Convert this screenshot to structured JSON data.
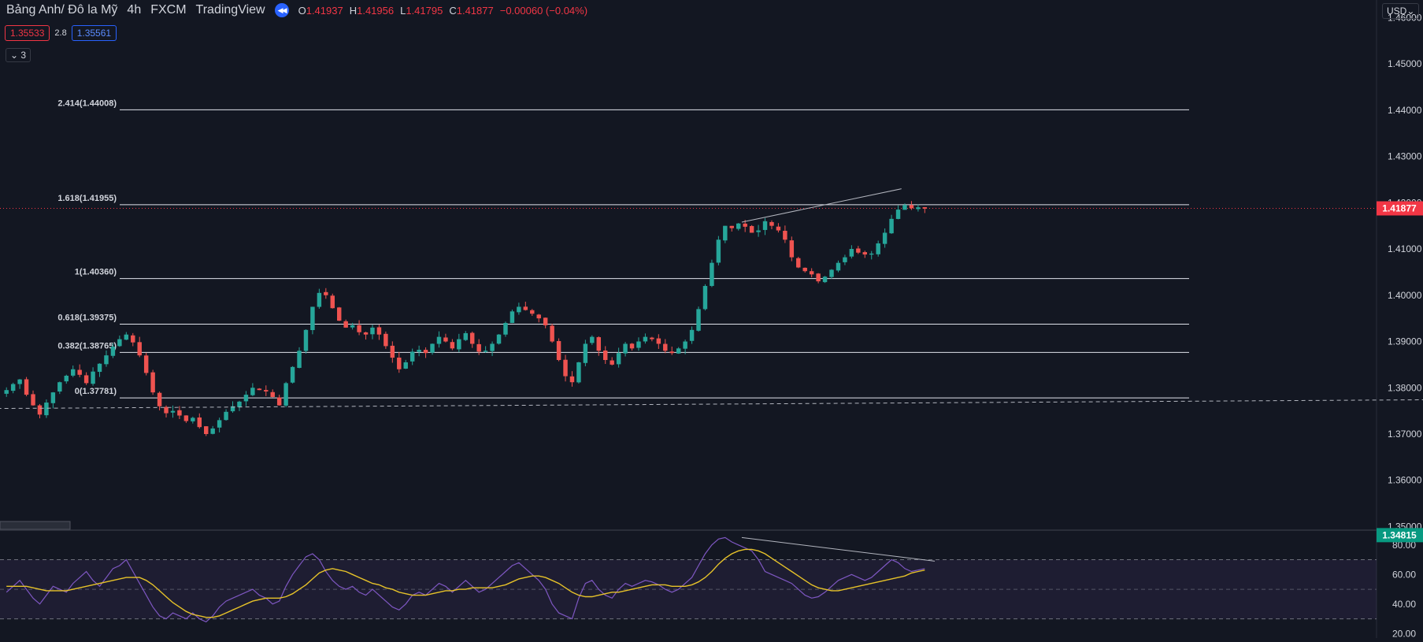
{
  "header": {
    "symbol": "Bảng Anh/ Đô la Mỹ",
    "interval": "4h",
    "exchange": "FXCM",
    "source": "TradingView",
    "ohlc": {
      "o_label": "O",
      "o": "1.41937",
      "h_label": "H",
      "h": "1.41956",
      "l_label": "L",
      "l": "1.41795",
      "c_label": "C",
      "c": "1.41877",
      "change": "−0.00060 (−0.04%)"
    }
  },
  "trade": {
    "sell": "1.35533",
    "spread": "2.8",
    "buy": "1.35561"
  },
  "indicators_collapse": {
    "icon": "chevron-down-icon",
    "count": "3"
  },
  "currency_button": "USD",
  "colors": {
    "background": "#131722",
    "up": "#26a69a",
    "down": "#ef5350",
    "rsi_line": "#7e57c2",
    "rsi_ma": "#e6c229",
    "current_price": "#f23645",
    "bid_tag": "#089981"
  },
  "chart_data": {
    "type": "candlestick",
    "price_axis": {
      "ticks": [
        "1.46000",
        "1.45000",
        "1.44000",
        "1.43000",
        "1.42000",
        "1.41000",
        "1.40000",
        "1.39000",
        "1.38000",
        "1.37000",
        "1.36000",
        "1.35000"
      ],
      "ylim": [
        1.3494,
        1.4638
      ]
    },
    "current_price": {
      "label": "1.41877",
      "value": 1.41877
    },
    "bid_price": {
      "label": "1.34815",
      "value": 1.34815
    },
    "fibonacci": [
      {
        "label": "2.414(1.44008)",
        "value": 1.44008
      },
      {
        "label": "1.618(1.41955)",
        "value": 1.41955
      },
      {
        "label": "1(1.40360)",
        "value": 1.4036
      },
      {
        "label": "0.618(1.39375)",
        "value": 1.39375
      },
      {
        "label": "0.382(1.38765)",
        "value": 1.38765
      },
      {
        "label": "0(1.37781)",
        "value": 1.37781
      }
    ],
    "closes": [
      1.3795,
      1.3808,
      1.3818,
      1.3785,
      1.3762,
      1.3742,
      1.3768,
      1.379,
      1.3812,
      1.3826,
      1.384,
      1.3828,
      1.381,
      1.3835,
      1.3852,
      1.387,
      1.3889,
      1.3905,
      1.3915,
      1.3898,
      1.387,
      1.3832,
      1.379,
      1.376,
      1.3745,
      1.375,
      1.374,
      1.3728,
      1.3735,
      1.3715,
      1.37,
      1.3712,
      1.373,
      1.3748,
      1.376,
      1.377,
      1.3785,
      1.38,
      1.3795,
      1.3792,
      1.378,
      1.3762,
      1.381,
      1.3845,
      1.388,
      1.3925,
      1.3975,
      1.4005,
      1.4,
      1.3972,
      1.3945,
      1.393,
      1.3935,
      1.392,
      1.3915,
      1.393,
      1.3915,
      1.389,
      1.3865,
      1.384,
      1.3855,
      1.3878,
      1.3882,
      1.3875,
      1.3895,
      1.391,
      1.39,
      1.3885,
      1.3905,
      1.3918,
      1.3895,
      1.3878,
      1.388,
      1.3895,
      1.3915,
      1.394,
      1.3965,
      1.3975,
      1.3968,
      1.396,
      1.395,
      1.3935,
      1.39,
      1.386,
      1.3825,
      1.3812,
      1.3855,
      1.3895,
      1.391,
      1.388,
      1.386,
      1.385,
      1.3875,
      1.3895,
      1.3885,
      1.39,
      1.391,
      1.3905,
      1.3895,
      1.388,
      1.3875,
      1.3885,
      1.39,
      1.3925,
      1.397,
      1.402,
      1.407,
      1.412,
      1.415,
      1.4145,
      1.4155,
      1.4148,
      1.4135,
      1.414,
      1.416,
      1.415,
      1.414,
      1.412,
      1.4082,
      1.406,
      1.4052,
      1.4045,
      1.403,
      1.404,
      1.4055,
      1.407,
      1.4082,
      1.41,
      1.4092,
      1.4088,
      1.409,
      1.4112,
      1.4135,
      1.4165,
      1.4185,
      1.4195,
      1.4188,
      1.419,
      1.4187
    ],
    "trendlines": [
      {
        "name": "upper-trendline",
        "from": [
          111,
          1.4158
        ],
        "to": [
          135,
          1.423
        ]
      },
      {
        "name": "dashed-trendline",
        "from": [
          -3,
          1.3755
        ],
        "to": [
          270,
          1.3779
        ]
      }
    ],
    "rsi": {
      "axis_ticks": [
        "80.00",
        "60.00",
        "40.00",
        "20.00"
      ],
      "ylim": [
        17,
        90
      ],
      "band": [
        70,
        30
      ],
      "mid": 50,
      "values": [
        48,
        52,
        56,
        50,
        44,
        40,
        46,
        52,
        50,
        48,
        54,
        58,
        62,
        56,
        52,
        58,
        64,
        66,
        70,
        62,
        54,
        46,
        38,
        32,
        30,
        34,
        32,
        30,
        34,
        30,
        28,
        32,
        38,
        42,
        44,
        46,
        48,
        50,
        46,
        44,
        40,
        42,
        52,
        60,
        66,
        72,
        74,
        70,
        62,
        56,
        52,
        50,
        52,
        48,
        46,
        50,
        46,
        42,
        38,
        36,
        40,
        46,
        48,
        46,
        50,
        54,
        52,
        48,
        52,
        56,
        52,
        48,
        50,
        54,
        58,
        62,
        66,
        68,
        64,
        60,
        56,
        50,
        40,
        34,
        32,
        30,
        44,
        54,
        56,
        50,
        46,
        44,
        50,
        54,
        52,
        54,
        56,
        55,
        53,
        50,
        48,
        50,
        54,
        58,
        66,
        74,
        80,
        84,
        85,
        82,
        80,
        78,
        76,
        70,
        62,
        60,
        58,
        56,
        54,
        50,
        46,
        44,
        45,
        48,
        52,
        56,
        58,
        60,
        58,
        56,
        58,
        62,
        66,
        70,
        68,
        64,
        62,
        63,
        64
      ],
      "ma": [
        52,
        52,
        52,
        52,
        51,
        50,
        49,
        49,
        49,
        49,
        50,
        51,
        52,
        53,
        54,
        55,
        56,
        57,
        58,
        58,
        58,
        56,
        53,
        49,
        45,
        41,
        38,
        35,
        33,
        32,
        31,
        31,
        32,
        34,
        36,
        38,
        40,
        42,
        43,
        44,
        44,
        44,
        45,
        47,
        50,
        53,
        57,
        61,
        63,
        64,
        63,
        62,
        60,
        58,
        56,
        54,
        53,
        51,
        50,
        48,
        47,
        46,
        46,
        46,
        47,
        48,
        49,
        49,
        50,
        50,
        51,
        51,
        51,
        51,
        52,
        53,
        55,
        57,
        58,
        59,
        59,
        58,
        56,
        54,
        51,
        48,
        46,
        45,
        45,
        46,
        47,
        48,
        48,
        49,
        50,
        51,
        52,
        53,
        53,
        53,
        52,
        52,
        52,
        53,
        55,
        58,
        62,
        67,
        71,
        74,
        76,
        77,
        77,
        76,
        74,
        71,
        68,
        65,
        62,
        59,
        56,
        53,
        51,
        50,
        49,
        49,
        50,
        51,
        52,
        53,
        54,
        55,
        56,
        57,
        58,
        59,
        61,
        62,
        63
      ]
    },
    "rsi_divergence_line": {
      "from": [
        111,
        85
      ],
      "to": [
        140,
        69
      ]
    }
  }
}
